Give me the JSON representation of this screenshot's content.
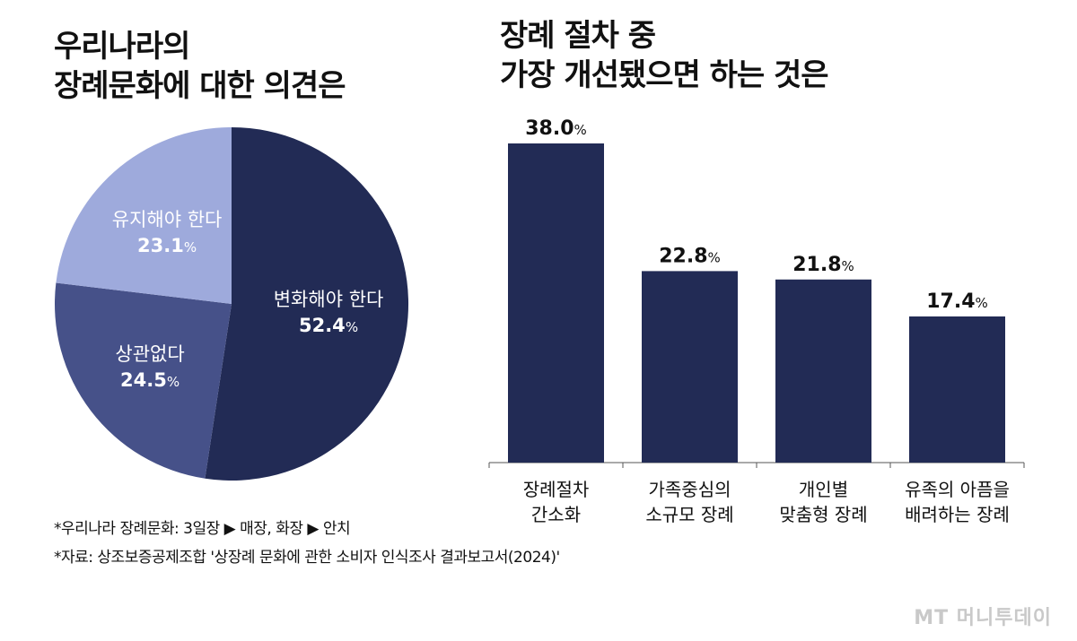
{
  "pie_title_lines": [
    "우리나라의",
    "장례문화에 대한 의견은"
  ],
  "bar_title_lines": [
    "장례 절차 중",
    "가장 개선됐으면 하는 것은"
  ],
  "chart_data": [
    {
      "type": "pie",
      "title": "우리나라의 장례문화에 대한 의견은",
      "unit": "%",
      "slices": [
        {
          "label": "변화해야 한다",
          "value": 52.4,
          "value_text": "52.4",
          "color": "#222b55",
          "text_color": "#ffffff"
        },
        {
          "label": "상관없다",
          "value": 24.5,
          "value_text": "24.5",
          "color": "#465189",
          "text_color": "#ffffff"
        },
        {
          "label": "유지해야 한다",
          "value": 23.1,
          "value_text": "23.1",
          "color": "#9eaadc",
          "text_color": "#ffffff"
        }
      ]
    },
    {
      "type": "bar",
      "title": "장례 절차 중 가장 개선됐으면 하는 것은",
      "unit": "%",
      "ylim": [
        0,
        40
      ],
      "bar_color": "#222b55",
      "categories": [
        [
          "장례절차",
          "간소화"
        ],
        [
          "가족중심의",
          "소규모 장례"
        ],
        [
          "개인별",
          "맞춤형 장례"
        ],
        [
          "유족의 아픔을",
          "배려하는 장례"
        ]
      ],
      "values": [
        38.0,
        22.8,
        21.8,
        17.4
      ],
      "value_texts": [
        "38.0",
        "22.8",
        "21.8",
        "17.4"
      ]
    }
  ],
  "notes": [
    "*우리나라 장례문화: 3일장 ▶ 매장, 화장 ▶ 안치",
    "*자료: 상조보증공제조합 '상장례 문화에 관한 소비자 인식조사 결과보고서(2024)'"
  ],
  "logo_text": "MT 머니투데이"
}
